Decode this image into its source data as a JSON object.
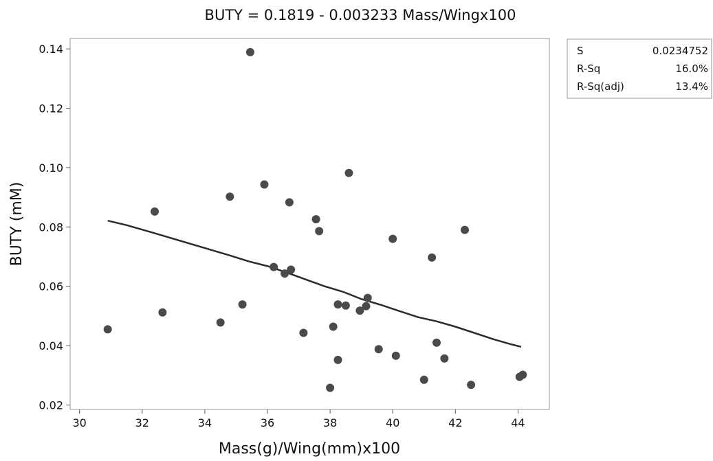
{
  "chart_data": {
    "type": "scatter",
    "title": "BUTY = 0.1819 - 0.003233 Mass/Wingx100",
    "xlabel": "Mass(g)/Wing(mm)x100",
    "ylabel": "BUTY (mM)",
    "xlim": [
      29.7,
      45.0
    ],
    "ylim": [
      0.0185,
      0.1435
    ],
    "xticks": [
      30,
      32,
      34,
      36,
      38,
      40,
      42,
      44
    ],
    "yticks": [
      0.02,
      0.04,
      0.06,
      0.08,
      0.1,
      0.12,
      0.14
    ],
    "xtick_labels": [
      "30",
      "32",
      "34",
      "36",
      "38",
      "40",
      "42",
      "44"
    ],
    "ytick_labels": [
      "0.02",
      "0.04",
      "0.06",
      "0.08",
      "0.10",
      "0.12",
      "0.14"
    ],
    "grid": false,
    "points": [
      {
        "x": 30.9,
        "y": 0.0455
      },
      {
        "x": 32.4,
        "y": 0.0852
      },
      {
        "x": 32.65,
        "y": 0.0512
      },
      {
        "x": 34.5,
        "y": 0.0478
      },
      {
        "x": 34.8,
        "y": 0.0902
      },
      {
        "x": 35.2,
        "y": 0.0539
      },
      {
        "x": 35.45,
        "y": 0.1389
      },
      {
        "x": 35.9,
        "y": 0.0943
      },
      {
        "x": 36.2,
        "y": 0.0665
      },
      {
        "x": 36.55,
        "y": 0.0643
      },
      {
        "x": 36.7,
        "y": 0.0883
      },
      {
        "x": 36.75,
        "y": 0.0656
      },
      {
        "x": 37.15,
        "y": 0.0443
      },
      {
        "x": 37.55,
        "y": 0.0826
      },
      {
        "x": 37.65,
        "y": 0.0786
      },
      {
        "x": 38.0,
        "y": 0.0258
      },
      {
        "x": 38.1,
        "y": 0.0464
      },
      {
        "x": 38.25,
        "y": 0.0539
      },
      {
        "x": 38.25,
        "y": 0.0352
      },
      {
        "x": 38.5,
        "y": 0.0535
      },
      {
        "x": 38.6,
        "y": 0.0982
      },
      {
        "x": 38.95,
        "y": 0.0518
      },
      {
        "x": 39.15,
        "y": 0.0533
      },
      {
        "x": 39.2,
        "y": 0.0561
      },
      {
        "x": 39.55,
        "y": 0.0388
      },
      {
        "x": 40.0,
        "y": 0.076
      },
      {
        "x": 40.1,
        "y": 0.0366
      },
      {
        "x": 41.0,
        "y": 0.0285
      },
      {
        "x": 41.25,
        "y": 0.0697
      },
      {
        "x": 41.4,
        "y": 0.041
      },
      {
        "x": 41.65,
        "y": 0.0357
      },
      {
        "x": 42.3,
        "y": 0.079
      },
      {
        "x": 42.5,
        "y": 0.0268
      },
      {
        "x": 44.05,
        "y": 0.0295
      },
      {
        "x": 44.15,
        "y": 0.0302
      }
    ],
    "fit_line": [
      {
        "x": 30.9,
        "y": 0.0821
      },
      {
        "x": 31.5,
        "y": 0.0806
      },
      {
        "x": 32.4,
        "y": 0.0779
      },
      {
        "x": 33.0,
        "y": 0.076
      },
      {
        "x": 33.9,
        "y": 0.0732
      },
      {
        "x": 34.8,
        "y": 0.0704
      },
      {
        "x": 35.4,
        "y": 0.0684
      },
      {
        "x": 36.0,
        "y": 0.0668
      },
      {
        "x": 36.6,
        "y": 0.0647
      },
      {
        "x": 37.2,
        "y": 0.0624
      },
      {
        "x": 37.8,
        "y": 0.0601
      },
      {
        "x": 38.4,
        "y": 0.0582
      },
      {
        "x": 39.0,
        "y": 0.0557
      },
      {
        "x": 39.6,
        "y": 0.0538
      },
      {
        "x": 40.2,
        "y": 0.0517
      },
      {
        "x": 40.8,
        "y": 0.0496
      },
      {
        "x": 41.4,
        "y": 0.0482
      },
      {
        "x": 42.0,
        "y": 0.0464
      },
      {
        "x": 42.6,
        "y": 0.0443
      },
      {
        "x": 43.2,
        "y": 0.0422
      },
      {
        "x": 43.8,
        "y": 0.0404
      },
      {
        "x": 44.1,
        "y": 0.0396
      }
    ],
    "stats_box": {
      "position": "top-right",
      "rows": [
        {
          "label": "S",
          "value": "0.0234752"
        },
        {
          "label": "R-Sq",
          "value": "16.0%"
        },
        {
          "label": "R-Sq(adj)",
          "value": "13.4%"
        }
      ]
    },
    "colors": {
      "points": "#4a4a4a",
      "line": "#2b2b2b",
      "frame": "#9a9a9a",
      "text": "#111111"
    }
  }
}
